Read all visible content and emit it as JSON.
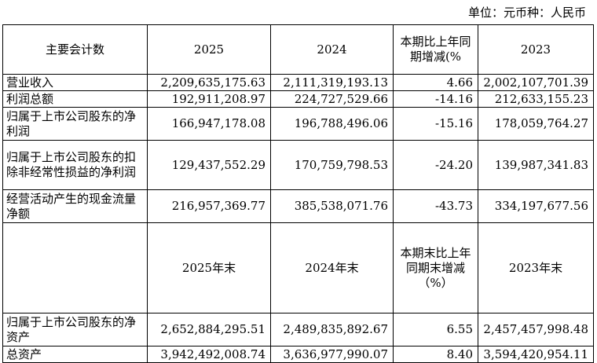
{
  "unit_note": "单位：元币种：人民币",
  "header1": {
    "label": "主要会计数",
    "col1": "2025",
    "col2": "2024",
    "col3": "本期比上年同期增减(%",
    "col4": "2023"
  },
  "rows1": [
    {
      "label": "营业收入",
      "v1": "2,209,635,175.63",
      "v2": "2,111,319,193.13",
      "v3": "4.66",
      "v4": "2,002,107,701.39"
    },
    {
      "label": "利润总额",
      "v1": "192,911,208.97",
      "v2": "224,727,529.66",
      "v3": "-14.16",
      "v4": "212,633,155.23"
    },
    {
      "label": "归属于上市公司股东的净利润",
      "v1": "166,947,178.08",
      "v2": "196,788,496.06",
      "v3": "-15.16",
      "v4": "178,059,764.27"
    },
    {
      "label": "归属于上市公司股东的扣除非经常性损益的净利润",
      "v1": "129,437,552.29",
      "v2": "170,759,798.53",
      "v3": "-24.20",
      "v4": "139,987,341.83"
    },
    {
      "label": "经营活动产生的现金流量净额",
      "v1": "216,957,369.77",
      "v2": "385,538,071.76",
      "v3": "-43.73",
      "v4": "334,197,677.56"
    }
  ],
  "header2": {
    "label": "",
    "col1": "2025年末",
    "col2": "2024年末",
    "col3": "本期末比上年同期末增减（%）",
    "col4": "2023年末"
  },
  "rows2": [
    {
      "label": "归属于上市公司股东的净资产",
      "v1": "2,652,884,295.51",
      "v2": "2,489,835,892.67",
      "v3": "6.55",
      "v4": "2,457,457,998.48"
    },
    {
      "label": "总资产",
      "v1": "3,942,492,008.74",
      "v2": "3,636,977,990.07",
      "v3": "8.40",
      "v4": "3,594,420,954.11"
    }
  ]
}
